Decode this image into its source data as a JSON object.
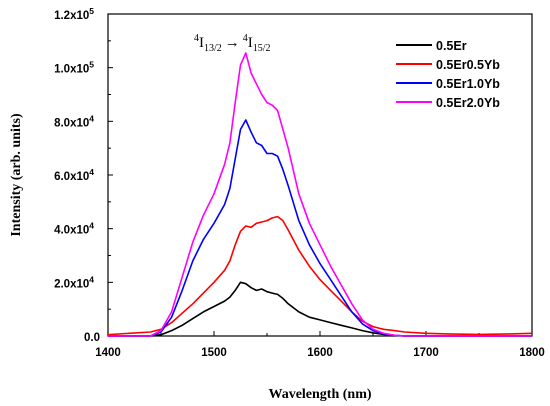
{
  "chart_data": {
    "type": "line",
    "xlabel": "Wavelength (nm)",
    "ylabel": "Intensity (arb. units)",
    "xlim": [
      1400,
      1800
    ],
    "ylim": [
      0,
      120000
    ],
    "x_ticks": [
      1400,
      1500,
      1600,
      1700,
      1800
    ],
    "y_ticks": [
      {
        "value": 0,
        "mantissa": "0.0",
        "exp": ""
      },
      {
        "value": 20000,
        "mantissa": "2.0x10",
        "exp": "4"
      },
      {
        "value": 40000,
        "mantissa": "4.0x10",
        "exp": "4"
      },
      {
        "value": 60000,
        "mantissa": "6.0x10",
        "exp": "4"
      },
      {
        "value": 80000,
        "mantissa": "8.0x10",
        "exp": "4"
      },
      {
        "value": 100000,
        "mantissa": "1.0x10",
        "exp": "5"
      },
      {
        "value": 120000,
        "mantissa": "1.2x10",
        "exp": "5"
      }
    ],
    "legend_position": "top-right",
    "grid": false,
    "annotation": {
      "upper_sup": "4",
      "upper_main": "I",
      "upper_sub": "13/2",
      "arrow": "→",
      "lower_sup": "4",
      "lower_main": "I",
      "lower_sub": "15/2"
    },
    "x": [
      1400,
      1420,
      1440,
      1450,
      1460,
      1470,
      1480,
      1490,
      1500,
      1510,
      1515,
      1520,
      1525,
      1530,
      1535,
      1540,
      1545,
      1550,
      1555,
      1560,
      1565,
      1570,
      1580,
      1590,
      1600,
      1610,
      1620,
      1630,
      1640,
      1650,
      1660,
      1670,
      1680,
      1700,
      1720,
      1750,
      1780,
      1800
    ],
    "series": [
      {
        "name": "0.5Er",
        "color": "#000000",
        "values": [
          0,
          0,
          0,
          500,
          2000,
          4000,
          6500,
          9000,
          11000,
          13000,
          14500,
          17000,
          20000,
          19500,
          18000,
          17000,
          17500,
          16500,
          16000,
          15500,
          14000,
          12000,
          9000,
          7000,
          6000,
          5000,
          4000,
          3000,
          2000,
          1200,
          600,
          200,
          0,
          0,
          0,
          0,
          0,
          0
        ]
      },
      {
        "name": "0.5Er0.5Yb",
        "color": "#ff0000",
        "values": [
          500,
          1000,
          1500,
          2500,
          5000,
          8500,
          12000,
          16000,
          20000,
          24500,
          28000,
          34000,
          39000,
          41000,
          40500,
          42000,
          42500,
          43000,
          44000,
          44500,
          43000,
          39500,
          32000,
          26000,
          21000,
          17000,
          13000,
          9000,
          5500,
          3500,
          2500,
          2000,
          1500,
          1000,
          800,
          600,
          800,
          1000
        ]
      },
      {
        "name": "0.5Er1.0Yb",
        "color": "#0000ff",
        "values": [
          0,
          0,
          0,
          1500,
          7000,
          17000,
          28000,
          36000,
          42000,
          49000,
          55000,
          66000,
          77000,
          80500,
          76000,
          72000,
          71000,
          68000,
          68000,
          67000,
          62000,
          56000,
          43000,
          34000,
          27000,
          21000,
          15000,
          9000,
          4500,
          2000,
          800,
          300,
          0,
          0,
          0,
          0,
          0,
          0
        ]
      },
      {
        "name": "0.5Er2.0Yb",
        "color": "#ff00ff",
        "values": [
          0,
          0,
          0,
          2000,
          9000,
          22000,
          35000,
          45000,
          53000,
          64000,
          72000,
          87000,
          101000,
          105500,
          98000,
          94000,
          90000,
          87000,
          86000,
          84000,
          77000,
          70000,
          53000,
          42000,
          34000,
          26000,
          19000,
          12000,
          6000,
          2500,
          1000,
          300,
          0,
          0,
          0,
          0,
          0,
          0
        ]
      }
    ]
  }
}
